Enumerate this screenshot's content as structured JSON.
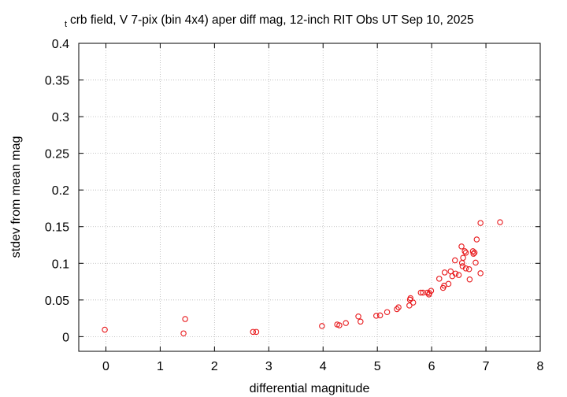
{
  "chart_data": {
    "type": "scatter",
    "title_prefix": "t",
    "title": "crb field, V 7-pix (bin 4x4) aper diff mag,  12-inch RIT Obs UT Sep 10, 2025",
    "xlabel": "differential magnitude",
    "ylabel": "stdev from mean mag",
    "xlim": [
      -0.5,
      8
    ],
    "ylim": [
      -0.02,
      0.4
    ],
    "xticks": [
      "0",
      "1",
      "2",
      "3",
      "4",
      "5",
      "6",
      "7",
      "8"
    ],
    "yticks": [
      "0",
      "0.05",
      "0.1",
      "0.15",
      "0.2",
      "0.25",
      "0.3",
      "0.35",
      "0.4"
    ],
    "grid": true,
    "legend": "none",
    "marker": "open-circle",
    "color": "#e8191c",
    "series": [
      {
        "points": [
          [
            -0.02,
            0.0095
          ],
          [
            1.43,
            0.0045
          ],
          [
            1.46,
            0.024
          ],
          [
            2.71,
            0.0065
          ],
          [
            2.77,
            0.0065
          ],
          [
            3.98,
            0.0145
          ],
          [
            4.26,
            0.0165
          ],
          [
            4.3,
            0.0155
          ],
          [
            4.42,
            0.0185
          ],
          [
            4.65,
            0.0275
          ],
          [
            4.69,
            0.0205
          ],
          [
            4.98,
            0.0285
          ],
          [
            5.05,
            0.029
          ],
          [
            5.18,
            0.0335
          ],
          [
            5.36,
            0.0375
          ],
          [
            5.39,
            0.04
          ],
          [
            5.59,
            0.0425
          ],
          [
            5.6,
            0.0505
          ],
          [
            5.61,
            0.0525
          ],
          [
            5.66,
            0.0465
          ],
          [
            5.8,
            0.06
          ],
          [
            5.84,
            0.06
          ],
          [
            5.92,
            0.06
          ],
          [
            5.95,
            0.0575
          ],
          [
            5.96,
            0.0595
          ],
          [
            5.99,
            0.0625
          ],
          [
            6.14,
            0.079
          ],
          [
            6.21,
            0.0665
          ],
          [
            6.23,
            0.0695
          ],
          [
            6.24,
            0.0875
          ],
          [
            6.31,
            0.072
          ],
          [
            6.35,
            0.089
          ],
          [
            6.38,
            0.0825
          ],
          [
            6.43,
            0.104
          ],
          [
            6.44,
            0.086
          ],
          [
            6.5,
            0.084
          ],
          [
            6.55,
            0.123
          ],
          [
            6.56,
            0.1005
          ],
          [
            6.57,
            0.096
          ],
          [
            6.58,
            0.1075
          ],
          [
            6.61,
            0.1165
          ],
          [
            6.63,
            0.1145
          ],
          [
            6.63,
            0.093
          ],
          [
            6.69,
            0.092
          ],
          [
            6.7,
            0.078
          ],
          [
            6.76,
            0.1165
          ],
          [
            6.77,
            0.113
          ],
          [
            6.79,
            0.1145
          ],
          [
            6.81,
            0.101
          ],
          [
            6.83,
            0.1325
          ],
          [
            6.9,
            0.155
          ],
          [
            6.9,
            0.0865
          ],
          [
            7.26,
            0.156
          ]
        ]
      }
    ]
  }
}
